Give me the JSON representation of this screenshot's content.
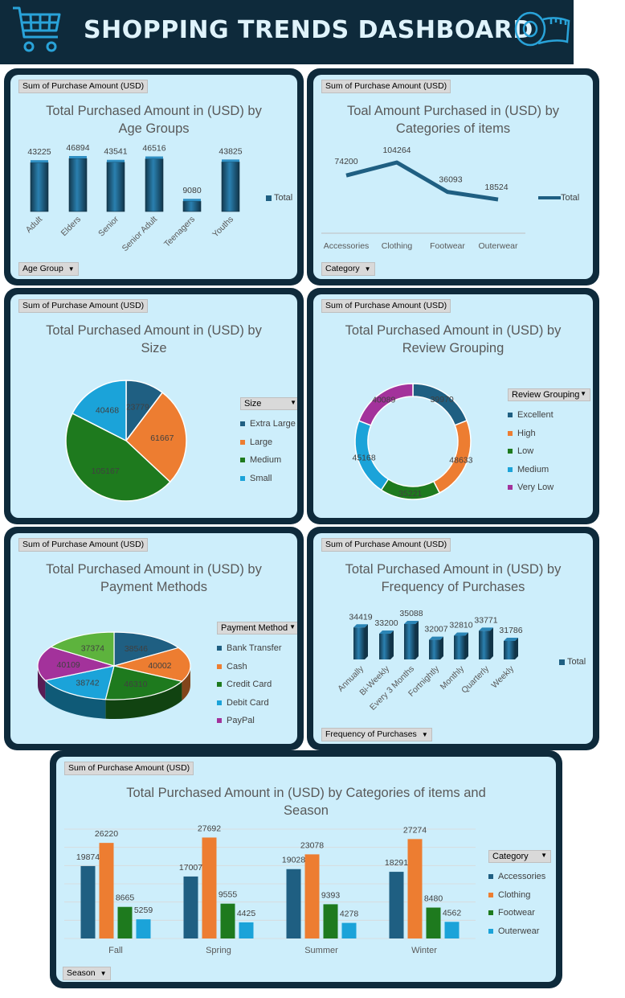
{
  "header": {
    "title": "SHOPPING TRENDS DASHBOARD"
  },
  "field_label": "Sum of Purchase Amount (USD)",
  "panels": {
    "age": {
      "title_line1": "Total Purchased Amount in (USD) by",
      "title_line2": "Age Groups",
      "filter": "Age Group",
      "legend": "Total"
    },
    "category": {
      "title_line1": "Toal Amount Purchased in (USD) by",
      "title_line2": "Categories of items",
      "filter": "Category",
      "legend": "Total"
    },
    "size": {
      "title_line1": "Total Purchased Amount in (USD) by",
      "title_line2": "Size",
      "legend_header": "Size"
    },
    "review": {
      "title_line1": "Total Purchased Amount in (USD) by",
      "title_line2": "Review Grouping",
      "legend_header": "Review Grouping"
    },
    "payment": {
      "title_line1": "Total Purchased Amount in (USD) by",
      "title_line2": "Payment Methods",
      "legend_header": "Payment Method"
    },
    "frequency": {
      "title_line1": "Total Purchased Amount in (USD) by",
      "title_line2": "Frequency of Purchases",
      "filter": "Frequency of Purchases",
      "legend": "Total"
    },
    "season": {
      "title_line1": "Total Purchased Amount in (USD) by Categories of items and",
      "title_line2": "Season",
      "filter": "Season",
      "legend_header": "Category"
    }
  },
  "colors": {
    "navy": "#0e2a3b",
    "panel_bg": "#cdeefb",
    "bar_blue": "#1f5f82",
    "accessories": "#1f5f82",
    "clothing": "#ed7d31",
    "footwear": "#1e7a1e",
    "outerwear": "#1ba3d9",
    "very_low": "#a3329b"
  },
  "chart_data": [
    {
      "type": "bar",
      "categories": [
        "Adult",
        "Elders",
        "Senior",
        "Senior Adult",
        "Teenagers",
        "Youths"
      ],
      "values": [
        43225,
        46894,
        43541,
        46516,
        9080,
        43825
      ],
      "series_name": "Total"
    },
    {
      "type": "line",
      "categories": [
        "Accessories",
        "Clothing",
        "Footwear",
        "Outerwear"
      ],
      "values": [
        74200,
        104264,
        36093,
        18524
      ],
      "series_name": "Total"
    },
    {
      "type": "pie",
      "labels": [
        "Extra Large",
        "Large",
        "Medium",
        "Small"
      ],
      "values": [
        23779,
        61667,
        105167,
        40468
      ]
    },
    {
      "type": "pie",
      "labels": [
        "Excellent",
        "High",
        "Low",
        "Medium",
        "Very Low"
      ],
      "values": [
        39970,
        48633,
        35221,
        45168,
        40089
      ],
      "display": [
        "39970",
        "48633",
        "35221",
        "45168",
        "40089"
      ]
    },
    {
      "type": "pie",
      "labels": [
        "Bank Transfer",
        "Cash",
        "Credit Card",
        "Debit Card",
        "PayPal"
      ],
      "values": [
        38546,
        40002,
        46310,
        38742,
        40109
      ],
      "other": 37374
    },
    {
      "type": "bar",
      "categories": [
        "Annually",
        "Bi-Weekly",
        "Every 3 Months",
        "Fortnightly",
        "Monthly",
        "Quarterly",
        "Weekly"
      ],
      "values": [
        34419,
        33200,
        35088,
        32007,
        32810,
        33771,
        31786
      ],
      "series_name": "Total"
    },
    {
      "type": "bar",
      "categories": [
        "Fall",
        "Spring",
        "Summer",
        "Winter"
      ],
      "series": [
        {
          "name": "Accessories",
          "values": [
            19874,
            17007,
            19028,
            18291
          ]
        },
        {
          "name": "Clothing",
          "values": [
            26220,
            27692,
            23078,
            27274
          ]
        },
        {
          "name": "Footwear",
          "values": [
            8665,
            9555,
            9393,
            8480
          ]
        },
        {
          "name": "Outerwear",
          "values": [
            5259,
            4425,
            4278,
            4562
          ]
        }
      ]
    }
  ]
}
